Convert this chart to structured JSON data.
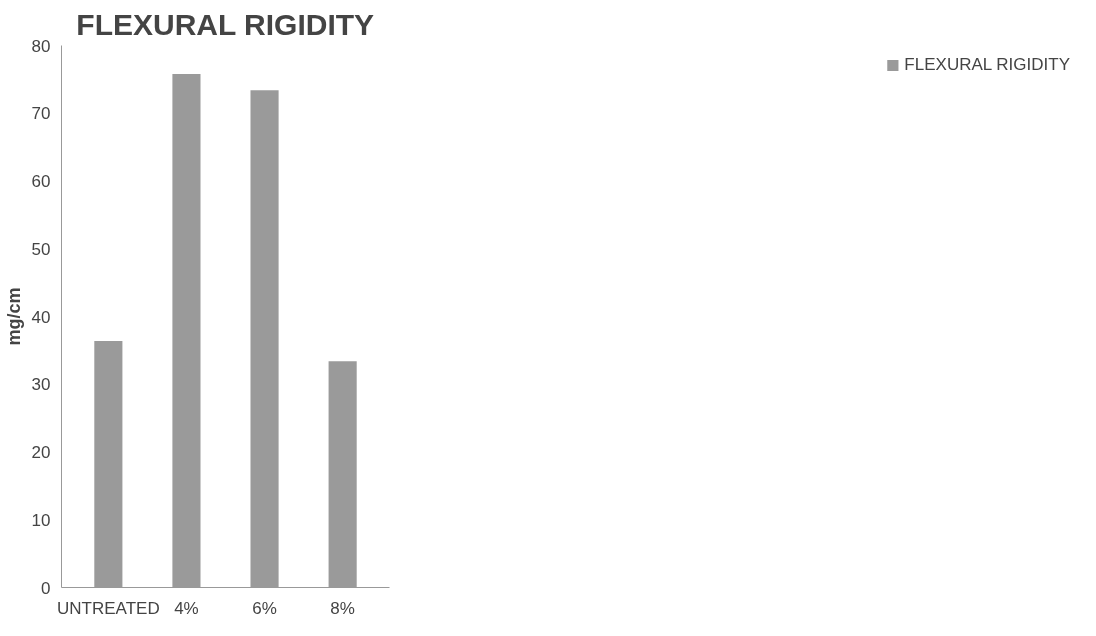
{
  "chart_data": {
    "type": "bar",
    "title": "FLEXURAL RIGIDITY",
    "ylabel": "mg/cm",
    "categories": [
      "UNTREATED",
      "4%",
      "6%",
      "8%"
    ],
    "series": [
      {
        "name": "FLEXURAL RIGIDITY",
        "color": "#9a9a9a",
        "values": [
          36.4,
          75.8,
          73.4,
          33.4
        ]
      }
    ],
    "ylim": [
      0,
      80
    ],
    "yticks": [
      0,
      10,
      20,
      30,
      40,
      50,
      60,
      70,
      80
    ],
    "grid": false,
    "legend": "right"
  }
}
